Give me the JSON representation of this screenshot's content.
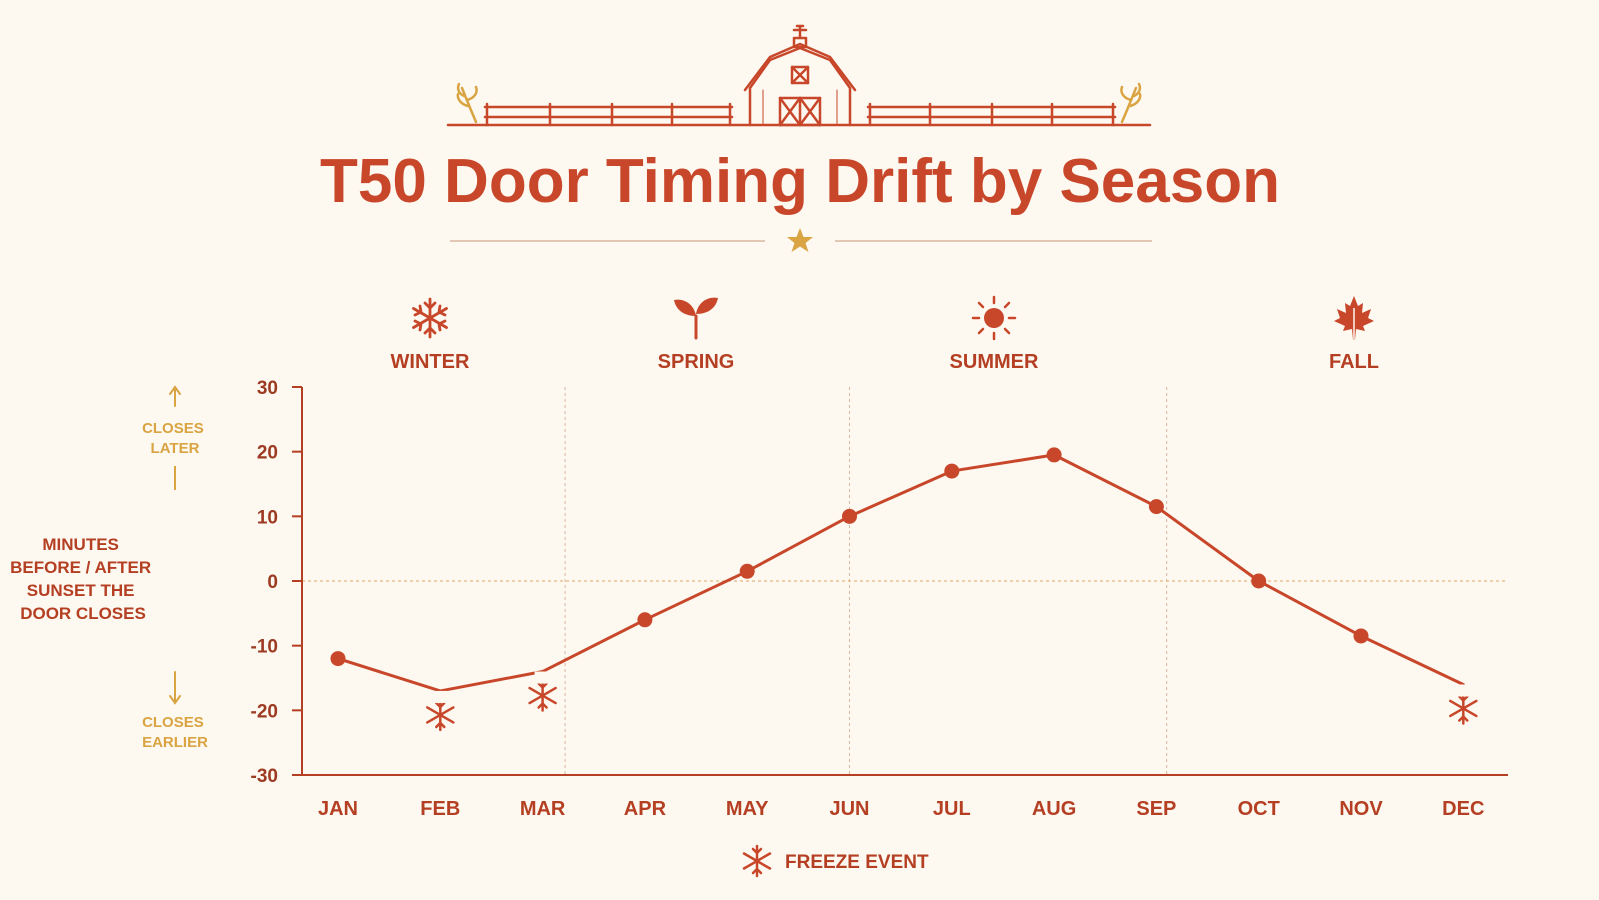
{
  "chart_data": {
    "type": "line",
    "title": "T50 Door Timing Drift by Season",
    "ylabel_lines": [
      "MINUTES",
      "BEFORE / AFTER",
      "SUNSET THE",
      "DOOR CLOSES"
    ],
    "direction_up": [
      "CLOSES",
      "LATER"
    ],
    "direction_down": [
      "CLOSES",
      "EARLIER"
    ],
    "categories": [
      "JAN",
      "FEB",
      "MAR",
      "APR",
      "MAY",
      "JUN",
      "JUL",
      "AUG",
      "SEP",
      "OCT",
      "NOV",
      "DEC"
    ],
    "values": [
      -12,
      -17,
      -14,
      -6,
      1.5,
      10,
      17,
      19.5,
      11.5,
      0,
      -8.5,
      -16
    ],
    "freeze_event_months": [
      "FEB",
      "MAR",
      "DEC"
    ],
    "ylim": [
      -30,
      30
    ],
    "yticks": [
      30,
      20,
      10,
      0,
      -10,
      -20,
      -30
    ],
    "seasons": [
      {
        "name": "WINTER",
        "icon": "snowflake-icon"
      },
      {
        "name": "SPRING",
        "icon": "sprout-icon"
      },
      {
        "name": "SUMMER",
        "icon": "sun-icon"
      },
      {
        "name": "FALL",
        "icon": "maple-leaf-icon"
      }
    ],
    "legend": {
      "label": "FREEZE EVENT",
      "icon": "snowflake-icon"
    },
    "colors": {
      "line": "#c8472a",
      "accent": "#d9a441",
      "text": "#b53f22",
      "background": "#fdf8f0"
    },
    "grid": false,
    "zero_line": true
  }
}
